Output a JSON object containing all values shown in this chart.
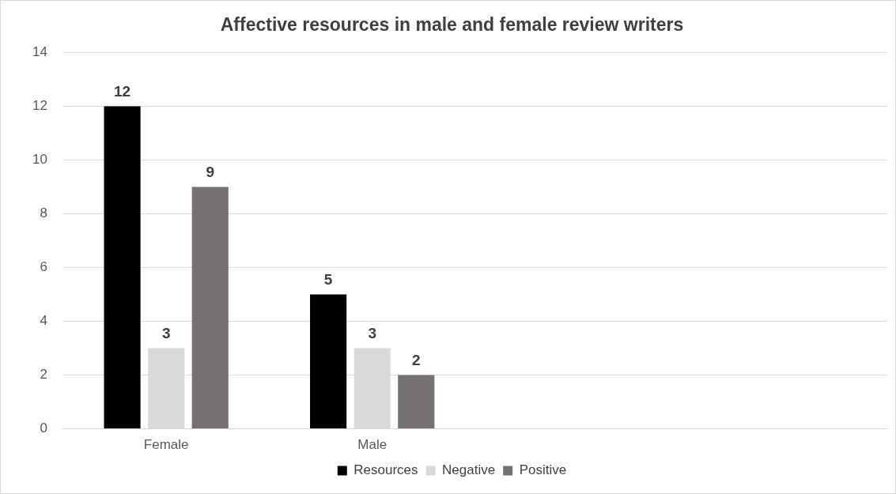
{
  "chart_data": {
    "type": "bar",
    "title": "Affective resources in male and female review writers",
    "categories": [
      "Female",
      "Male",
      null,
      null
    ],
    "series": [
      {
        "name": "Resources",
        "color": "#000000",
        "values": [
          12,
          5,
          null,
          null
        ]
      },
      {
        "name": "Negative",
        "color": "#d9d9d9",
        "values": [
          3,
          3,
          null,
          null
        ]
      },
      {
        "name": "Positive",
        "color": "#767171",
        "values": [
          9,
          2,
          null,
          null
        ]
      }
    ],
    "ylim": [
      0,
      14
    ],
    "yticks": [
      0,
      2,
      4,
      6,
      8,
      10,
      12,
      14
    ],
    "grid": "y",
    "legend": "bottom",
    "data_labels": true
  }
}
